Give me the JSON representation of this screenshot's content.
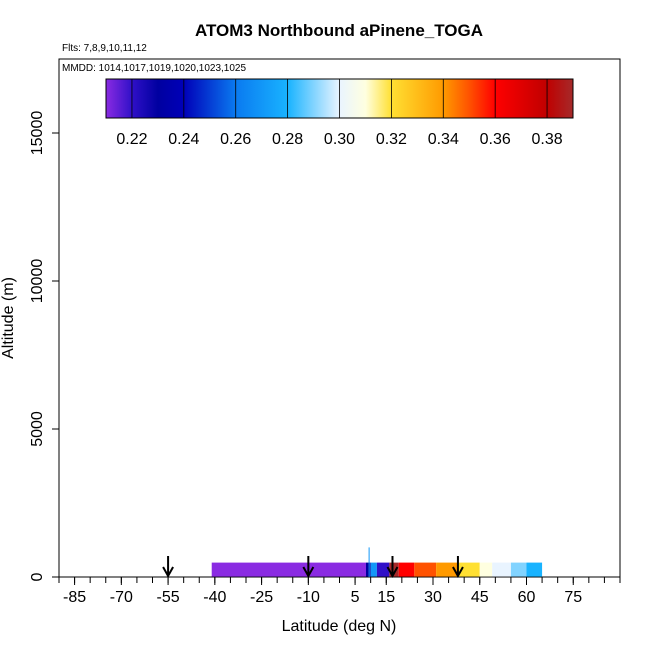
{
  "chart_data": {
    "type": "scatter",
    "title": "ATOM3 Northbound aPinene_TOGA",
    "notes": [
      "Flts: 7,8,9,10,11,12",
      "MMDD: 1014,1017,1019,1020,1023,1025"
    ],
    "xlabel": "Latitude (deg N)",
    "ylabel": "Altitude (m)",
    "xlim": [
      -90,
      90
    ],
    "ylim": [
      0,
      17500
    ],
    "x_ticks": [
      -85,
      -70,
      -55,
      -40,
      -25,
      -10,
      5,
      15,
      30,
      45,
      60,
      75
    ],
    "y_ticks": [
      0,
      5000,
      10000,
      15000
    ],
    "x_minor_step": 5,
    "grid": false,
    "colorbar": {
      "placement": "top-inside",
      "range": [
        0.21,
        0.39
      ],
      "ticks": [
        0.22,
        0.24,
        0.26,
        0.28,
        0.3,
        0.32,
        0.34,
        0.36,
        0.38
      ],
      "tick_labels": [
        "0.22",
        "0.24",
        "0.26",
        "0.28",
        "0.30",
        "0.32",
        "0.34",
        "0.36",
        "0.38"
      ],
      "stops": [
        {
          "v": 0.21,
          "color": "#8a2be2"
        },
        {
          "v": 0.22,
          "color": "#3010c8"
        },
        {
          "v": 0.23,
          "color": "#0000a0"
        },
        {
          "v": 0.24,
          "color": "#0000b8"
        },
        {
          "v": 0.26,
          "color": "#0a7af0"
        },
        {
          "v": 0.28,
          "color": "#19b3ff"
        },
        {
          "v": 0.3,
          "color": "#e9f4ff"
        },
        {
          "v": 0.31,
          "color": "#ffffe0"
        },
        {
          "v": 0.32,
          "color": "#ffe033"
        },
        {
          "v": 0.34,
          "color": "#ff9a00"
        },
        {
          "v": 0.35,
          "color": "#ff5200"
        },
        {
          "v": 0.36,
          "color": "#ff0000"
        },
        {
          "v": 0.38,
          "color": "#c00000"
        },
        {
          "v": 0.39,
          "color": "#a52a2a"
        }
      ]
    },
    "observations": {
      "altitude": 250,
      "segments": [
        {
          "lat_start": -41,
          "lat_end": 8.5,
          "value": 0.21
        },
        {
          "lat_start": 8.5,
          "lat_end": 10.0,
          "value": 0.23
        },
        {
          "lat_start": 10.0,
          "lat_end": 12.0,
          "value": 0.27
        },
        {
          "lat_start": 12.0,
          "lat_end": 16.0,
          "value": 0.22
        },
        {
          "lat_start": 16.0,
          "lat_end": 19.0,
          "value": 0.39
        },
        {
          "lat_start": 19.0,
          "lat_end": 24.0,
          "value": 0.36
        },
        {
          "lat_start": 24.0,
          "lat_end": 31.0,
          "value": 0.35
        },
        {
          "lat_start": 31.0,
          "lat_end": 38.0,
          "value": 0.34
        },
        {
          "lat_start": 38.0,
          "lat_end": 45.0,
          "value": 0.32
        },
        {
          "lat_start": 45.0,
          "lat_end": 49.0,
          "value": 0.31
        },
        {
          "lat_start": 49.0,
          "lat_end": 55.0,
          "value": 0.3
        },
        {
          "lat_start": 55.0,
          "lat_end": 60.0,
          "value": 0.29
        },
        {
          "lat_start": 60.0,
          "lat_end": 65.0,
          "value": 0.28
        }
      ],
      "vertical_profile": {
        "lat": 9.5,
        "alt_min": 0,
        "alt_max": 1000,
        "value": 0.27
      }
    },
    "arrows": [
      -55,
      -10,
      17,
      38
    ]
  }
}
